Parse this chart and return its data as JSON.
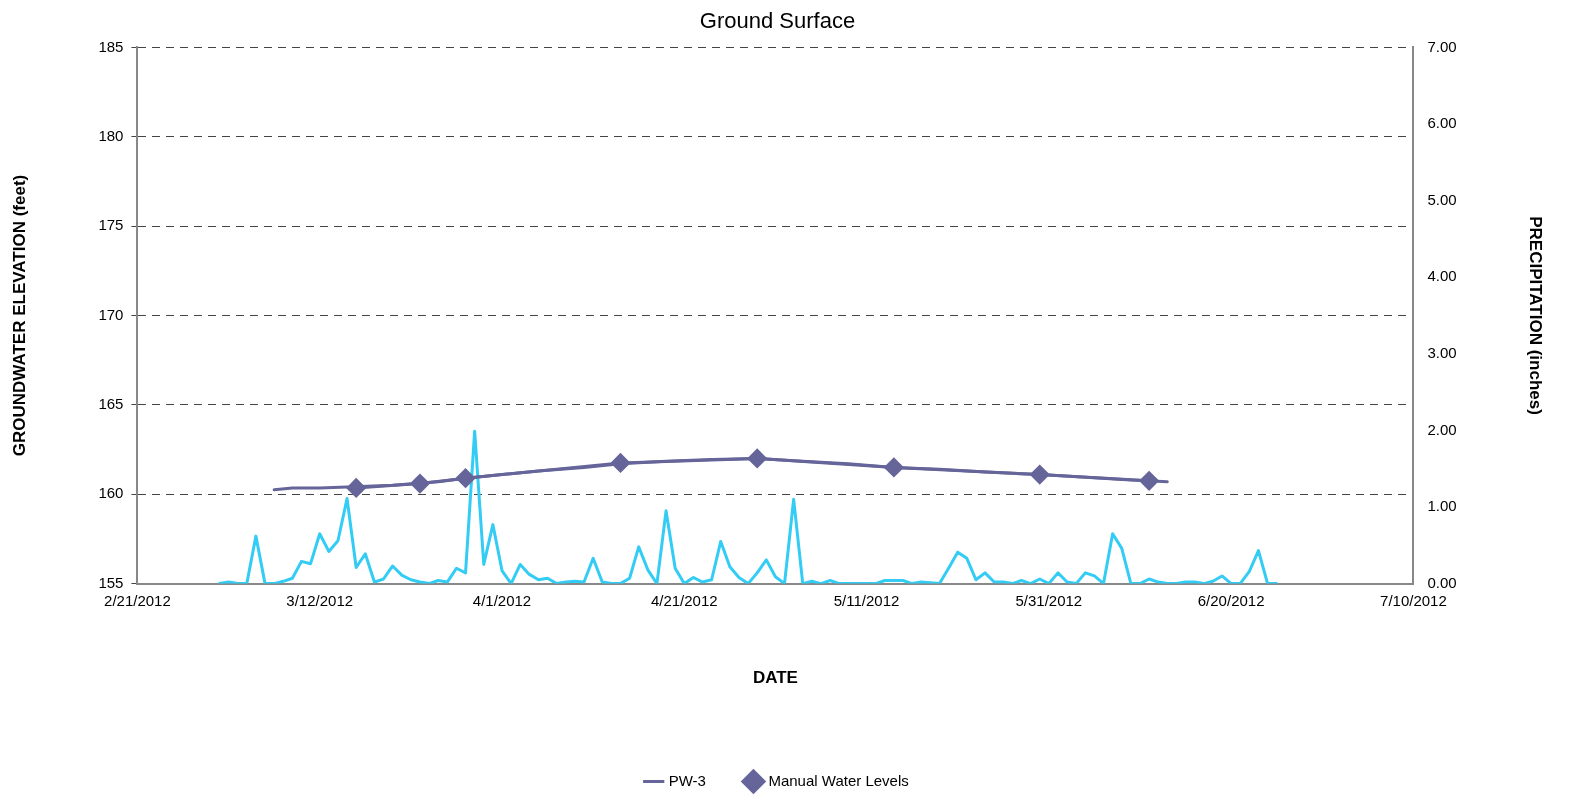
{
  "chart_data": {
    "type": "line",
    "title": "Ground Surface",
    "xlabel": "DATE",
    "ylabel": "GROUNDWATER ELEVATION (feet)",
    "y2label": "PRECIPITATION (inches)",
    "xlim": [
      "2012-02-21",
      "2012-07-10"
    ],
    "xticks": [
      {
        "value": "2012-02-21",
        "label": "2/21/2012"
      },
      {
        "value": "2012-03-12",
        "label": "3/12/2012"
      },
      {
        "value": "2012-04-01",
        "label": "4/1/2012"
      },
      {
        "value": "2012-04-21",
        "label": "4/21/2012"
      },
      {
        "value": "2012-05-11",
        "label": "5/11/2012"
      },
      {
        "value": "2012-05-31",
        "label": "5/31/2012"
      },
      {
        "value": "2012-06-20",
        "label": "6/20/2012"
      },
      {
        "value": "2012-07-10",
        "label": "7/10/2012"
      }
    ],
    "ylim": [
      155,
      185
    ],
    "yticks": [
      155,
      160,
      165,
      170,
      175,
      180,
      185
    ],
    "y2lim": [
      0,
      7
    ],
    "y2ticks": [
      {
        "value": 0,
        "label": "0.00"
      },
      {
        "value": 1,
        "label": "1.00"
      },
      {
        "value": 2,
        "label": "2.00"
      },
      {
        "value": 3,
        "label": "3.00"
      },
      {
        "value": 4,
        "label": "4.00"
      },
      {
        "value": 5,
        "label": "5.00"
      },
      {
        "value": 6,
        "label": "6.00"
      },
      {
        "value": 7,
        "label": "7.00"
      }
    ],
    "grid": "y",
    "legend": "bottom",
    "series": [
      {
        "name": "PW-3",
        "color": "#65659a",
        "marker": "none",
        "x": [
          "2012-03-07",
          "2012-03-09",
          "2012-03-12",
          "2012-03-15",
          "2012-03-20",
          "2012-03-25",
          "2012-03-28",
          "2012-04-01",
          "2012-04-05",
          "2012-04-10",
          "2012-04-14",
          "2012-04-19",
          "2012-04-24",
          "2012-04-29",
          "2012-05-04",
          "2012-05-09",
          "2012-05-14",
          "2012-05-19",
          "2012-05-24",
          "2012-05-30",
          "2012-06-04",
          "2012-06-09",
          "2012-06-13"
        ],
        "values": [
          160.25,
          160.35,
          160.35,
          160.4,
          160.5,
          160.7,
          160.9,
          161.1,
          161.3,
          161.5,
          161.7,
          161.85,
          161.95,
          162.0,
          161.85,
          161.7,
          161.5,
          161.4,
          161.25,
          161.1,
          160.95,
          160.8,
          160.7
        ]
      },
      {
        "name": "Manual Water Levels",
        "color": "#65659a",
        "marker": "diamond",
        "x": [
          "2012-03-16",
          "2012-03-23",
          "2012-03-28",
          "2012-04-14",
          "2012-04-29",
          "2012-05-14",
          "2012-05-30",
          "2012-06-11"
        ],
        "values": [
          160.35,
          160.6,
          160.9,
          161.75,
          162.0,
          161.5,
          161.1,
          160.75
        ]
      },
      {
        "color": "#33ccf5",
        "marker": "none",
        "axis": "y2",
        "x": [
          "2012-03-01",
          "2012-03-02",
          "2012-03-03",
          "2012-03-04",
          "2012-03-05",
          "2012-03-06",
          "2012-03-07",
          "2012-03-08",
          "2012-03-09",
          "2012-03-10",
          "2012-03-11",
          "2012-03-12",
          "2012-03-13",
          "2012-03-14",
          "2012-03-15",
          "2012-03-16",
          "2012-03-17",
          "2012-03-18",
          "2012-03-19",
          "2012-03-20",
          "2012-03-21",
          "2012-03-22",
          "2012-03-23",
          "2012-03-24",
          "2012-03-25",
          "2012-03-26",
          "2012-03-27",
          "2012-03-28",
          "2012-03-29",
          "2012-03-30",
          "2012-03-31",
          "2012-04-01",
          "2012-04-02",
          "2012-04-03",
          "2012-04-04",
          "2012-04-05",
          "2012-04-06",
          "2012-04-07",
          "2012-04-08",
          "2012-04-09",
          "2012-04-10",
          "2012-04-11",
          "2012-04-12",
          "2012-04-13",
          "2012-04-14",
          "2012-04-15",
          "2012-04-16",
          "2012-04-17",
          "2012-04-18",
          "2012-04-19",
          "2012-04-20",
          "2012-04-21",
          "2012-04-22",
          "2012-04-23",
          "2012-04-24",
          "2012-04-25",
          "2012-04-26",
          "2012-04-27",
          "2012-04-28",
          "2012-04-29",
          "2012-04-30",
          "2012-05-01",
          "2012-05-02",
          "2012-05-03",
          "2012-05-04",
          "2012-05-05",
          "2012-05-06",
          "2012-05-07",
          "2012-05-08",
          "2012-05-09",
          "2012-05-10",
          "2012-05-11",
          "2012-05-12",
          "2012-05-13",
          "2012-05-14",
          "2012-05-15",
          "2012-05-16",
          "2012-05-17",
          "2012-05-18",
          "2012-05-19",
          "2012-05-20",
          "2012-05-21",
          "2012-05-22",
          "2012-05-23",
          "2012-05-24",
          "2012-05-25",
          "2012-05-26",
          "2012-05-27",
          "2012-05-28",
          "2012-05-29",
          "2012-05-30",
          "2012-05-31",
          "2012-06-01",
          "2012-06-02",
          "2012-06-03",
          "2012-06-04",
          "2012-06-05",
          "2012-06-06",
          "2012-06-07",
          "2012-06-08",
          "2012-06-09",
          "2012-06-10",
          "2012-06-11",
          "2012-06-12",
          "2012-06-13",
          "2012-06-14",
          "2012-06-15",
          "2012-06-16",
          "2012-06-17",
          "2012-06-18",
          "2012-06-19",
          "2012-06-20",
          "2012-06-21",
          "2012-06-22",
          "2012-06-23",
          "2012-06-24",
          "2012-06-25"
        ],
        "values": [
          0,
          0.02,
          0,
          0,
          0.62,
          0,
          0,
          0.03,
          0.07,
          0.29,
          0.26,
          0.65,
          0.42,
          0.56,
          1.11,
          0.21,
          0.39,
          0.02,
          0.06,
          0.23,
          0.11,
          0.05,
          0.02,
          0,
          0.04,
          0.02,
          0.2,
          0.14,
          1.99,
          0.25,
          0.77,
          0.17,
          0,
          0.25,
          0.12,
          0.05,
          0.07,
          0,
          0.02,
          0.03,
          0.02,
          0.33,
          0.02,
          0,
          0,
          0.07,
          0.48,
          0.18,
          0,
          0.95,
          0.2,
          0,
          0.08,
          0.02,
          0.05,
          0.55,
          0.22,
          0.08,
          0,
          0.14,
          0.31,
          0.09,
          0,
          1.1,
          0,
          0.03,
          0,
          0.04,
          0,
          0,
          0,
          0,
          0,
          0.04,
          0.04,
          0.04,
          0,
          0.02,
          0.01,
          0,
          0.2,
          0.41,
          0.33,
          0.05,
          0.14,
          0.02,
          0.02,
          0,
          0.04,
          0,
          0.06,
          0,
          0.14,
          0.02,
          0,
          0.14,
          0.1,
          0,
          0.65,
          0.46,
          0,
          0,
          0.06,
          0.02,
          0,
          0,
          0.02,
          0.02,
          0,
          0.03,
          0.1,
          0,
          0,
          0.16,
          0.43,
          0,
          0
        ]
      }
    ]
  }
}
